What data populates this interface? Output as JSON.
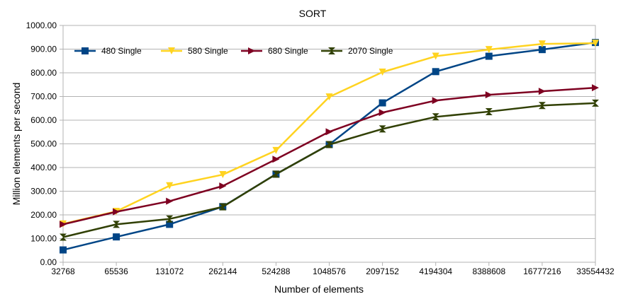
{
  "chart_data": {
    "type": "line",
    "title": "SORT",
    "xlabel": "Number of elements",
    "ylabel": "Million elements per second",
    "categories": [
      "32768",
      "65536",
      "131072",
      "262144",
      "524288",
      "1048576",
      "2097152",
      "4194304",
      "8388608",
      "16777216",
      "33554432"
    ],
    "ylim": [
      0,
      1000
    ],
    "yticks": [
      "0.00",
      "100.00",
      "200.00",
      "300.00",
      "400.00",
      "500.00",
      "600.00",
      "700.00",
      "800.00",
      "900.00",
      "1000.00"
    ],
    "grid": "horizontal",
    "legend_position": "top-left inside",
    "series": [
      {
        "name": "480 Single",
        "color": "#004586",
        "marker": "square",
        "values": [
          52,
          107,
          160,
          235,
          372,
          497,
          673,
          805,
          870,
          898,
          928
        ]
      },
      {
        "name": "580 Single",
        "color": "#ffd320",
        "marker": "triangle-down",
        "values": [
          162,
          215,
          323,
          370,
          472,
          698,
          803,
          870,
          898,
          922,
          925
        ]
      },
      {
        "name": "680 Single",
        "color": "#7e0021",
        "marker": "triangle-right",
        "values": [
          160,
          213,
          258,
          322,
          435,
          551,
          632,
          683,
          707,
          722,
          737
        ]
      },
      {
        "name": "2070 Single",
        "color": "#314004",
        "marker": "bowtie",
        "values": [
          106,
          160,
          183,
          234,
          372,
          497,
          563,
          614,
          636,
          662,
          672
        ]
      }
    ]
  }
}
